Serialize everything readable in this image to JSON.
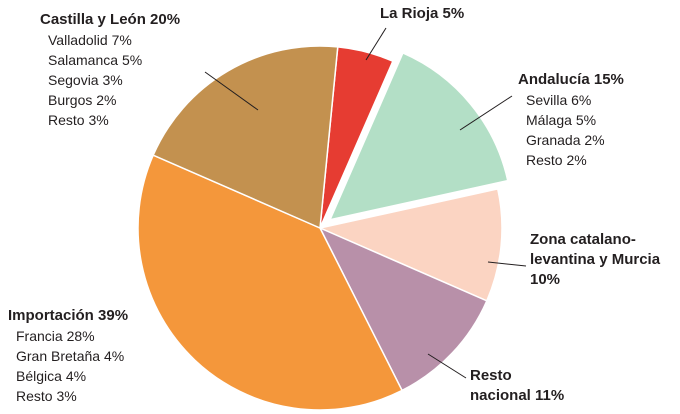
{
  "chart_data": {
    "type": "pie",
    "categories": [
      "La Rioja",
      "Andalucía",
      "Zona catalano-levantina y Murcia",
      "Resto nacional",
      "Importación",
      "Castilla y León"
    ],
    "values": [
      5,
      15,
      10,
      11,
      39,
      20
    ],
    "value_labels": [
      "5%",
      "15%",
      "10%",
      "11%",
      "39%",
      "20%"
    ],
    "colors": [
      "#e63c32",
      "#b3dfc6",
      "#fbd4c2",
      "#b890a9",
      "#f4973b",
      "#c3914f"
    ],
    "exploded": [
      false,
      true,
      false,
      false,
      false,
      false
    ],
    "breakdowns": [
      null,
      {
        "names": [
          "Sevilla",
          "Málaga",
          "Granada",
          "Resto"
        ],
        "values": [
          6,
          5,
          2,
          2
        ],
        "value_labels": [
          "6%",
          "5%",
          "2%",
          "2%"
        ]
      },
      null,
      null,
      {
        "names": [
          "Francia",
          "Gran Bretaña",
          "Bélgica",
          "Resto"
        ],
        "values": [
          28,
          4,
          4,
          3
        ],
        "value_labels": [
          "28%",
          "4%",
          "4%",
          "3%"
        ]
      },
      {
        "names": [
          "Valladolid",
          "Salamanca",
          "Segovia",
          "Burgos",
          "Resto"
        ],
        "values": [
          7,
          5,
          3,
          2,
          3
        ],
        "value_labels": [
          "7%",
          "5%",
          "3%",
          "2%",
          "3%"
        ]
      }
    ]
  }
}
